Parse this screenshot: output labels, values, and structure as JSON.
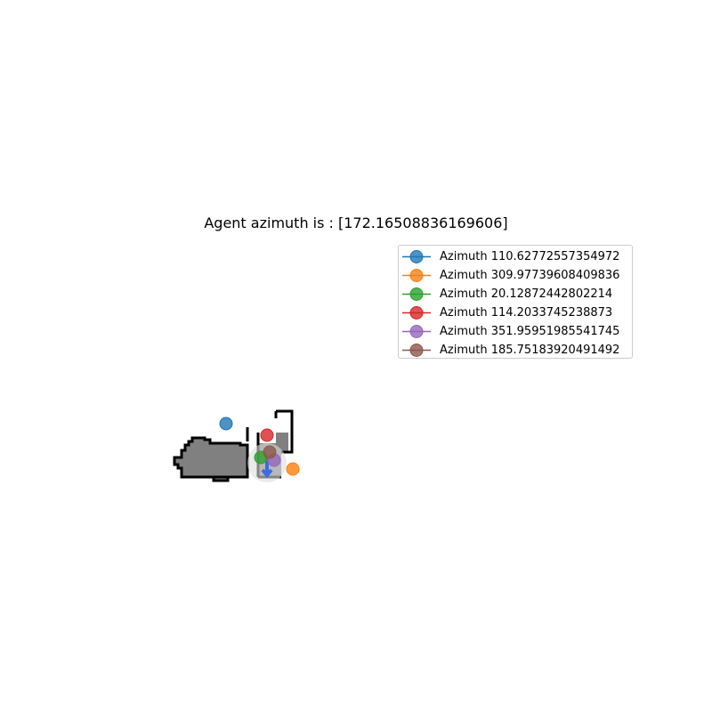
{
  "title": "Agent azimuth is : [172.16508836169606]",
  "chart_data": {
    "type": "scatter",
    "title": "Agent azimuth is : [172.16508836169606]",
    "xlabel": "",
    "ylabel": "",
    "axes_visible": false,
    "legend_position": "upper-right",
    "agent": {
      "azimuth": 172.16508836169606,
      "x": 0,
      "y": 0
    },
    "series": [
      {
        "name": "Azimuth 110.62772557354972",
        "label": "Azimuth 110.62772557354972",
        "color": "#1f77b4",
        "x": -46,
        "y": 44
      },
      {
        "name": "Azimuth 309.97739608409836",
        "label": "Azimuth 309.97739608409836",
        "color": "#ff7f0e",
        "x": 29,
        "y": -7
      },
      {
        "name": "Azimuth 20.12872442802214",
        "label": "Azimuth 20.12872442802214",
        "color": "#2ca02c",
        "x": -7,
        "y": 6
      },
      {
        "name": "Azimuth 114.2033745238873",
        "label": "Azimuth 114.2033745238873",
        "color": "#d62728",
        "x": 0,
        "y": 31
      },
      {
        "name": "Azimuth 351.95951985541745",
        "label": "Azimuth 351.95951985541745",
        "color": "#9467bd",
        "x": 8,
        "y": 3
      },
      {
        "name": "Azimuth 185.75183920491492",
        "label": "Azimuth 185.75183920491492",
        "color": "#8c564b",
        "x": 3,
        "y": 12
      }
    ]
  }
}
